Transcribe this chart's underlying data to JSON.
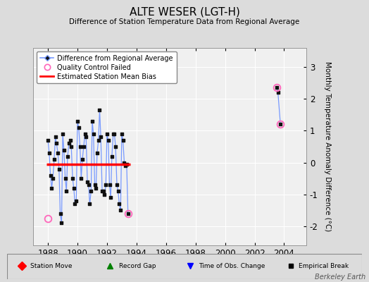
{
  "title": "ALTE WESER (LGT-H)",
  "subtitle": "Difference of Station Temperature Data from Regional Average",
  "ylabel": "Monthly Temperature Anomaly Difference (°C)",
  "background_color": "#dcdcdc",
  "plot_bg_color": "#f0f0f0",
  "xlim": [
    1987.0,
    2005.5
  ],
  "ylim": [
    -2.6,
    3.6
  ],
  "yticks": [
    -2,
    -1,
    0,
    1,
    2,
    3
  ],
  "xticks": [
    1988,
    1990,
    1992,
    1994,
    1996,
    1998,
    2000,
    2002,
    2004
  ],
  "bias_value": -0.05,
  "bias_xstart": 1987.9,
  "bias_xend": 1993.6,
  "main_series": [
    [
      1988.0,
      0.7
    ],
    [
      1988.08,
      0.3
    ],
    [
      1988.17,
      -0.4
    ],
    [
      1988.25,
      -0.8
    ],
    [
      1988.33,
      -0.5
    ],
    [
      1988.42,
      0.1
    ],
    [
      1988.5,
      0.8
    ],
    [
      1988.58,
      0.6
    ],
    [
      1988.67,
      0.3
    ],
    [
      1988.75,
      -0.2
    ],
    [
      1988.83,
      -1.6
    ],
    [
      1988.92,
      -1.9
    ],
    [
      1989.0,
      0.9
    ],
    [
      1989.08,
      0.4
    ],
    [
      1989.17,
      -0.5
    ],
    [
      1989.25,
      -0.9
    ],
    [
      1989.33,
      0.2
    ],
    [
      1989.42,
      0.6
    ],
    [
      1989.5,
      0.7
    ],
    [
      1989.58,
      0.5
    ],
    [
      1989.67,
      -0.5
    ],
    [
      1989.75,
      -0.8
    ],
    [
      1989.83,
      -1.3
    ],
    [
      1989.92,
      -1.2
    ],
    [
      1990.0,
      1.3
    ],
    [
      1990.08,
      1.1
    ],
    [
      1990.17,
      0.5
    ],
    [
      1990.25,
      -0.5
    ],
    [
      1990.33,
      0.1
    ],
    [
      1990.42,
      0.5
    ],
    [
      1990.5,
      0.9
    ],
    [
      1990.58,
      0.8
    ],
    [
      1990.67,
      -0.6
    ],
    [
      1990.75,
      -0.7
    ],
    [
      1990.83,
      -1.3
    ],
    [
      1990.92,
      -0.9
    ],
    [
      1991.0,
      1.3
    ],
    [
      1991.08,
      0.9
    ],
    [
      1991.17,
      -0.7
    ],
    [
      1991.25,
      -0.8
    ],
    [
      1991.33,
      0.3
    ],
    [
      1991.42,
      0.7
    ],
    [
      1991.5,
      1.65
    ],
    [
      1991.58,
      0.8
    ],
    [
      1991.67,
      -0.9
    ],
    [
      1991.75,
      -0.9
    ],
    [
      1991.83,
      -1.0
    ],
    [
      1991.92,
      -0.7
    ],
    [
      1992.0,
      0.9
    ],
    [
      1992.08,
      0.7
    ],
    [
      1992.17,
      -0.7
    ],
    [
      1992.25,
      -1.1
    ],
    [
      1992.33,
      0.2
    ],
    [
      1992.42,
      0.9
    ],
    [
      1992.5,
      0.9
    ],
    [
      1992.58,
      0.5
    ],
    [
      1992.67,
      -0.7
    ],
    [
      1992.75,
      -0.9
    ],
    [
      1992.83,
      -1.3
    ],
    [
      1992.92,
      -1.5
    ],
    [
      1993.0,
      0.9
    ],
    [
      1993.08,
      0.7
    ],
    [
      1993.17,
      0.0
    ],
    [
      1993.25,
      -0.1
    ],
    [
      1993.33,
      -0.05
    ],
    [
      1993.42,
      -1.6
    ]
  ],
  "isolated_series": [
    [
      2003.5,
      2.35
    ],
    [
      2003.58,
      2.2
    ],
    [
      2003.75,
      1.2
    ]
  ],
  "qc_failed_points": [
    [
      1988.0,
      -1.75
    ],
    [
      1993.42,
      -1.6
    ],
    [
      2003.5,
      2.35
    ],
    [
      2003.75,
      1.2
    ]
  ],
  "main_line_color": "#7799ff",
  "main_marker_color": "#111111",
  "qc_marker_color": "#ff66bb",
  "bias_line_color": "#ff0000",
  "watermark": "Berkeley Earth"
}
